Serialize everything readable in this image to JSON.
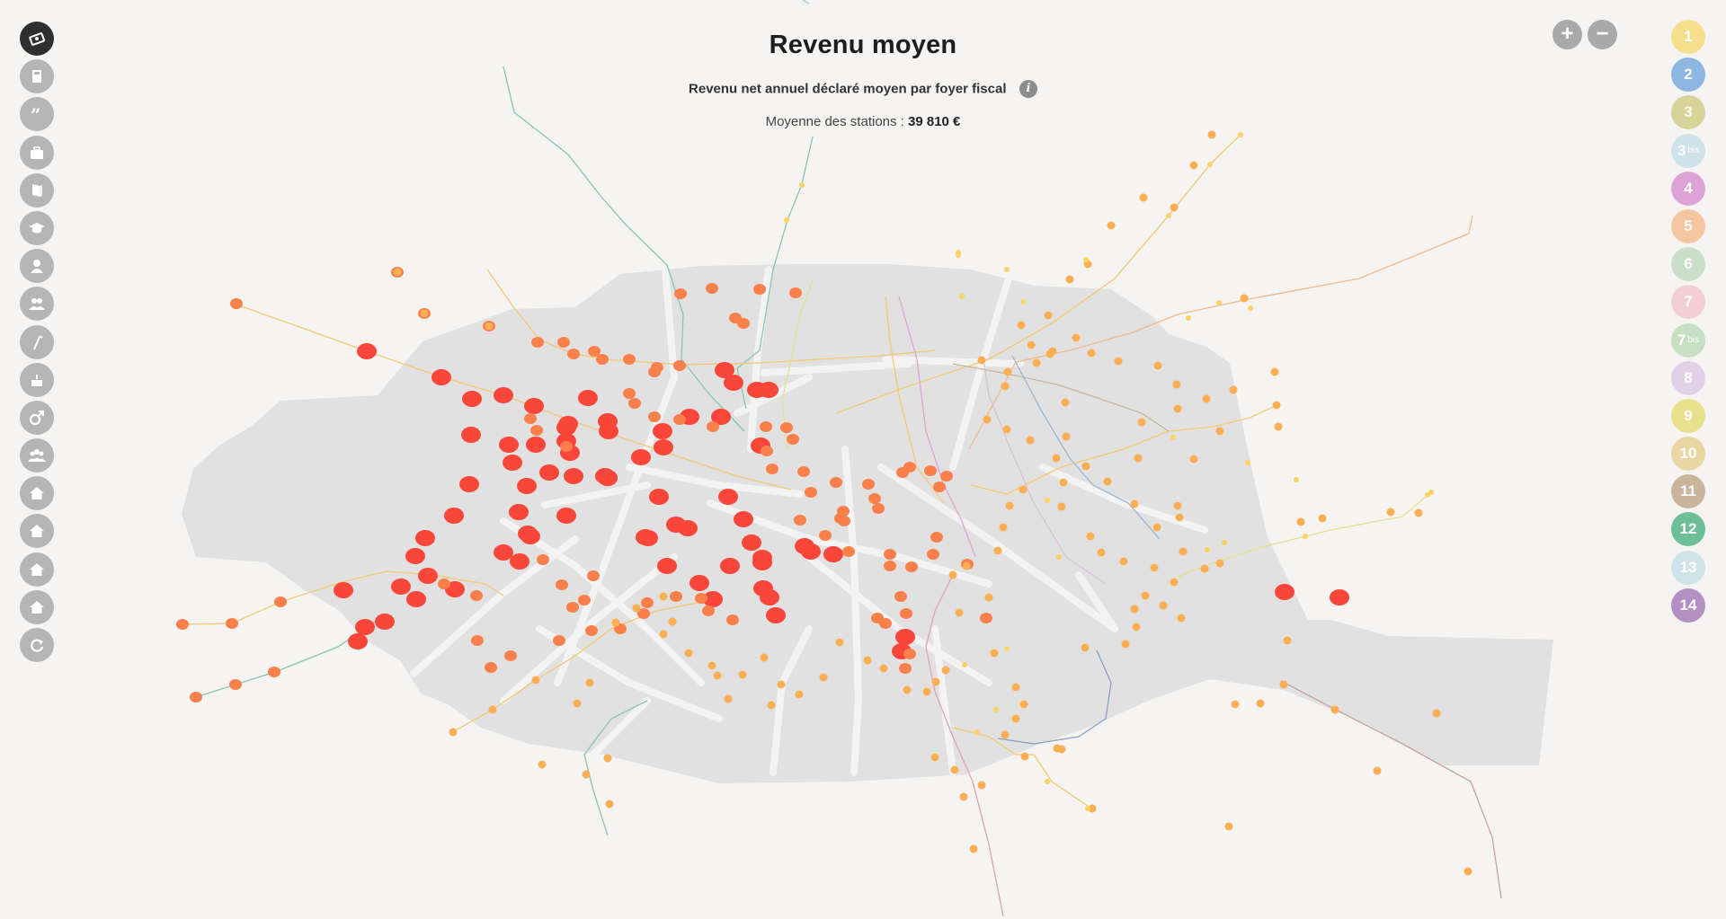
{
  "header": {
    "title": "Revenu moyen",
    "subtitle": "Revenu net annuel déclaré moyen par foyer fiscal",
    "info_icon": "i",
    "average_label": "Moyenne des stations :",
    "average_value": "39 810 €"
  },
  "sidebar": {
    "items": [
      {
        "name": "money-icon",
        "active": true
      },
      {
        "name": "calculator-icon",
        "active": false
      },
      {
        "name": "quote-icon",
        "active": false
      },
      {
        "name": "briefcase-icon",
        "active": false
      },
      {
        "name": "book-icon",
        "active": false
      },
      {
        "name": "graduation-cap-icon",
        "active": false
      },
      {
        "name": "person-icon",
        "active": false
      },
      {
        "name": "couple-icon",
        "active": false
      },
      {
        "name": "cane-icon",
        "active": false
      },
      {
        "name": "birthday-cake-icon",
        "active": false
      },
      {
        "name": "male-symbol-icon",
        "active": false
      },
      {
        "name": "family-icon",
        "active": false
      },
      {
        "name": "house-icon",
        "active": false
      },
      {
        "name": "house-icon",
        "active": false
      },
      {
        "name": "house-icon",
        "active": false
      },
      {
        "name": "house-icon",
        "active": false
      },
      {
        "name": "refresh-icon",
        "active": false
      }
    ]
  },
  "zoom": {
    "in_label": "+",
    "out_label": "−"
  },
  "metro_lines": [
    {
      "label": "1",
      "bis": "",
      "color": "#f5de8c"
    },
    {
      "label": "2",
      "bis": "",
      "color": "#8db6e0"
    },
    {
      "label": "3",
      "bis": "",
      "color": "#d8d399"
    },
    {
      "label": "3",
      "bis": "bis",
      "color": "#cfe2ea"
    },
    {
      "label": "4",
      "bis": "",
      "color": "#dea3d6"
    },
    {
      "label": "5",
      "bis": "",
      "color": "#f4c6a0"
    },
    {
      "label": "6",
      "bis": "",
      "color": "#c9dfca"
    },
    {
      "label": "7",
      "bis": "",
      "color": "#f2cfd6"
    },
    {
      "label": "7",
      "bis": "bis",
      "color": "#c7e0c4"
    },
    {
      "label": "8",
      "bis": "",
      "color": "#e2d1e6"
    },
    {
      "label": "9",
      "bis": "",
      "color": "#e8e08c"
    },
    {
      "label": "10",
      "bis": "",
      "color": "#ead6a3"
    },
    {
      "label": "11",
      "bis": "",
      "color": "#c9b59c"
    },
    {
      "label": "12",
      "bis": "",
      "color": "#6cbf96"
    },
    {
      "label": "13",
      "bis": "",
      "color": "#cfe3e9"
    },
    {
      "label": "14",
      "bis": "",
      "color": "#b48fc4"
    }
  ],
  "colors": {
    "high_income": "#f9463b",
    "upper_income": "#f97f4b",
    "mid_income": "#fbae52",
    "low_income": "#fed263",
    "map_fill": "#e1e1e1",
    "street": "#f2f2f2"
  }
}
